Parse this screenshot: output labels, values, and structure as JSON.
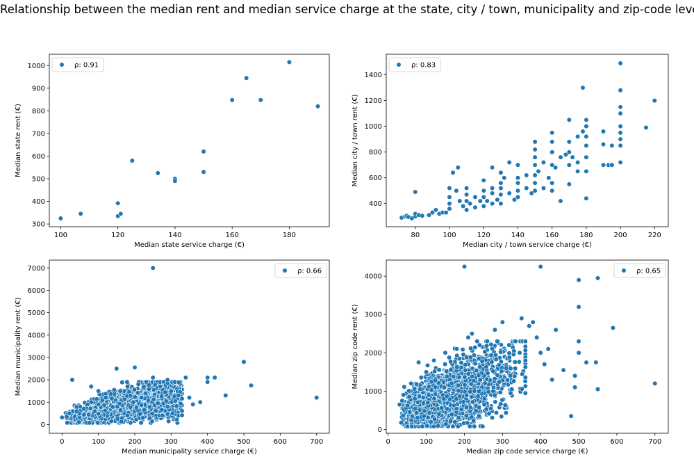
{
  "figure": {
    "title": "Relationship between the median rent and median service charge at the state, city / town, municipality and zip-code level",
    "marker_color": "#1f77b4"
  },
  "chart_data": [
    {
      "type": "scatter",
      "xlabel": "Median state service charge (€)",
      "ylabel": "Median state rent (€)",
      "legend": "ρ: 0.91",
      "legend_loc": "upper-left",
      "xlim": [
        96,
        194
      ],
      "ylim": [
        288,
        1050
      ],
      "xticks": [
        100,
        120,
        140,
        160,
        180
      ],
      "yticks": [
        300,
        400,
        500,
        600,
        700,
        800,
        900,
        1000
      ],
      "points": [
        [
          100,
          325
        ],
        [
          107,
          345
        ],
        [
          120,
          335
        ],
        [
          120,
          392
        ],
        [
          121,
          345
        ],
        [
          125,
          580
        ],
        [
          134,
          525
        ],
        [
          140,
          500
        ],
        [
          140,
          490
        ],
        [
          150,
          620
        ],
        [
          150,
          530
        ],
        [
          160,
          848
        ],
        [
          165,
          945
        ],
        [
          170,
          848
        ],
        [
          180,
          1015
        ],
        [
          190,
          820
        ]
      ]
    },
    {
      "type": "scatter",
      "xlabel": "Median city / town service charge (€)",
      "ylabel": "Median city / town rent (€)",
      "legend": "ρ: 0.83",
      "legend_loc": "upper-left",
      "xlim": [
        63,
        228
      ],
      "ylim": [
        220,
        1560
      ],
      "xticks": [
        80,
        100,
        120,
        140,
        160,
        180,
        200,
        220
      ],
      "yticks": [
        400,
        600,
        800,
        1000,
        1200,
        1400
      ],
      "points": [
        [
          72,
          290
        ],
        [
          74,
          300
        ],
        [
          75,
          305
        ],
        [
          76,
          295
        ],
        [
          78,
          285
        ],
        [
          80,
          300
        ],
        [
          80,
          320
        ],
        [
          80,
          490
        ],
        [
          82,
          310
        ],
        [
          84,
          305
        ],
        [
          88,
          310
        ],
        [
          90,
          330
        ],
        [
          92,
          350
        ],
        [
          94,
          320
        ],
        [
          96,
          330
        ],
        [
          98,
          330
        ],
        [
          100,
          360
        ],
        [
          100,
          400
        ],
        [
          100,
          450
        ],
        [
          100,
          520
        ],
        [
          102,
          640
        ],
        [
          104,
          500
        ],
        [
          105,
          680
        ],
        [
          106,
          420
        ],
        [
          108,
          380
        ],
        [
          110,
          350
        ],
        [
          110,
          420
        ],
        [
          110,
          470
        ],
        [
          110,
          520
        ],
        [
          112,
          400
        ],
        [
          115,
          370
        ],
        [
          115,
          450
        ],
        [
          118,
          420
        ],
        [
          120,
          380
        ],
        [
          120,
          450
        ],
        [
          120,
          500
        ],
        [
          120,
          580
        ],
        [
          122,
          420
        ],
        [
          125,
          400
        ],
        [
          125,
          480
        ],
        [
          125,
          520
        ],
        [
          125,
          680
        ],
        [
          128,
          430
        ],
        [
          130,
          400
        ],
        [
          130,
          470
        ],
        [
          130,
          520
        ],
        [
          130,
          560
        ],
        [
          130,
          640
        ],
        [
          132,
          600
        ],
        [
          135,
          720
        ],
        [
          135,
          480
        ],
        [
          138,
          430
        ],
        [
          140,
          450
        ],
        [
          140,
          500
        ],
        [
          140,
          560
        ],
        [
          140,
          600
        ],
        [
          140,
          700
        ],
        [
          145,
          520
        ],
        [
          145,
          620
        ],
        [
          148,
          480
        ],
        [
          150,
          500
        ],
        [
          150,
          560
        ],
        [
          150,
          620
        ],
        [
          150,
          700
        ],
        [
          150,
          760
        ],
        [
          150,
          820
        ],
        [
          150,
          880
        ],
        [
          152,
          650
        ],
        [
          155,
          520
        ],
        [
          155,
          720
        ],
        [
          158,
          600
        ],
        [
          160,
          500
        ],
        [
          160,
          560
        ],
        [
          160,
          700
        ],
        [
          160,
          800
        ],
        [
          160,
          880
        ],
        [
          160,
          950
        ],
        [
          162,
          680
        ],
        [
          165,
          420
        ],
        [
          165,
          760
        ],
        [
          168,
          780
        ],
        [
          170,
          550
        ],
        [
          170,
          700
        ],
        [
          170,
          800
        ],
        [
          170,
          880
        ],
        [
          170,
          1050
        ],
        [
          172,
          760
        ],
        [
          175,
          650
        ],
        [
          175,
          720
        ],
        [
          175,
          920
        ],
        [
          178,
          1300
        ],
        [
          178,
          960
        ],
        [
          180,
          440
        ],
        [
          180,
          650
        ],
        [
          180,
          760
        ],
        [
          180,
          850
        ],
        [
          180,
          920
        ],
        [
          180,
          1000
        ],
        [
          180,
          1050
        ],
        [
          190,
          700
        ],
        [
          190,
          860
        ],
        [
          190,
          960
        ],
        [
          193,
          700
        ],
        [
          195,
          700
        ],
        [
          195,
          850
        ],
        [
          200,
          720
        ],
        [
          200,
          850
        ],
        [
          200,
          900
        ],
        [
          200,
          950
        ],
        [
          200,
          1000
        ],
        [
          200,
          1100
        ],
        [
          200,
          1150
        ],
        [
          200,
          1280
        ],
        [
          200,
          1490
        ],
        [
          215,
          990
        ],
        [
          220,
          1200
        ]
      ]
    },
    {
      "type": "scatter",
      "xlabel": "Median municipality service charge (€)",
      "ylabel": "Median municipality rent (€)",
      "legend": "ρ: 0.66",
      "legend_loc": "upper-right",
      "xlim": [
        -35,
        735
      ],
      "ylim": [
        -390,
        7350
      ],
      "xticks": [
        0,
        100,
        200,
        300,
        400,
        500,
        600,
        700
      ],
      "yticks": [
        0,
        1000,
        2000,
        3000,
        4000,
        5000,
        6000,
        7000
      ],
      "points": [
        [
          0,
          320
        ],
        [
          20,
          500
        ],
        [
          28,
          2000
        ],
        [
          40,
          600
        ],
        [
          50,
          800
        ],
        [
          60,
          700
        ],
        [
          70,
          900
        ],
        [
          80,
          1000
        ],
        [
          80,
          1700
        ],
        [
          100,
          900
        ],
        [
          100,
          1500
        ],
        [
          120,
          1200
        ],
        [
          150,
          2500
        ],
        [
          160,
          1500
        ],
        [
          180,
          1700
        ],
        [
          200,
          2550
        ],
        [
          210,
          1800
        ],
        [
          230,
          1400
        ],
        [
          250,
          2100
        ],
        [
          250,
          7000
        ],
        [
          270,
          1700
        ],
        [
          290,
          2000
        ],
        [
          300,
          1500
        ],
        [
          320,
          1300
        ],
        [
          340,
          2100
        ],
        [
          350,
          1200
        ],
        [
          360,
          900
        ],
        [
          380,
          1000
        ],
        [
          400,
          2100
        ],
        [
          400,
          1900
        ],
        [
          420,
          2100
        ],
        [
          450,
          1300
        ],
        [
          500,
          2800
        ],
        [
          520,
          1750
        ],
        [
          700,
          1200
        ]
      ]
    },
    {
      "type": "scatter",
      "xlabel": "Median zip code service charge (€)",
      "ylabel": "Median zip code rent (€)",
      "legend": "ρ: 0.65",
      "legend_loc": "upper-right",
      "xlim": [
        -5,
        735
      ],
      "ylim": [
        -100,
        4420
      ],
      "xticks": [
        0,
        100,
        200,
        300,
        400,
        500,
        600,
        700
      ],
      "yticks": [
        0,
        1000,
        2000,
        3000,
        4000
      ],
      "points": [
        [
          30,
          650
        ],
        [
          40,
          900
        ],
        [
          60,
          1200
        ],
        [
          80,
          1750
        ],
        [
          100,
          1500
        ],
        [
          120,
          1800
        ],
        [
          150,
          2000
        ],
        [
          180,
          2100
        ],
        [
          200,
          4250
        ],
        [
          210,
          2400
        ],
        [
          220,
          2500
        ],
        [
          240,
          2200
        ],
        [
          260,
          2300
        ],
        [
          280,
          2600
        ],
        [
          300,
          2800
        ],
        [
          310,
          1600
        ],
        [
          330,
          2050
        ],
        [
          350,
          2900
        ],
        [
          360,
          1800
        ],
        [
          370,
          2700
        ],
        [
          380,
          2800
        ],
        [
          390,
          2400
        ],
        [
          400,
          4250
        ],
        [
          400,
          2000
        ],
        [
          410,
          1700
        ],
        [
          420,
          2100
        ],
        [
          430,
          1300
        ],
        [
          440,
          2600
        ],
        [
          460,
          1550
        ],
        [
          480,
          350
        ],
        [
          490,
          1400
        ],
        [
          490,
          1100
        ],
        [
          500,
          3900
        ],
        [
          500,
          3200
        ],
        [
          500,
          2300
        ],
        [
          500,
          2000
        ],
        [
          520,
          1750
        ],
        [
          545,
          1750
        ],
        [
          550,
          3950
        ],
        [
          550,
          1050
        ],
        [
          590,
          2650
        ],
        [
          700,
          1200
        ]
      ]
    }
  ]
}
